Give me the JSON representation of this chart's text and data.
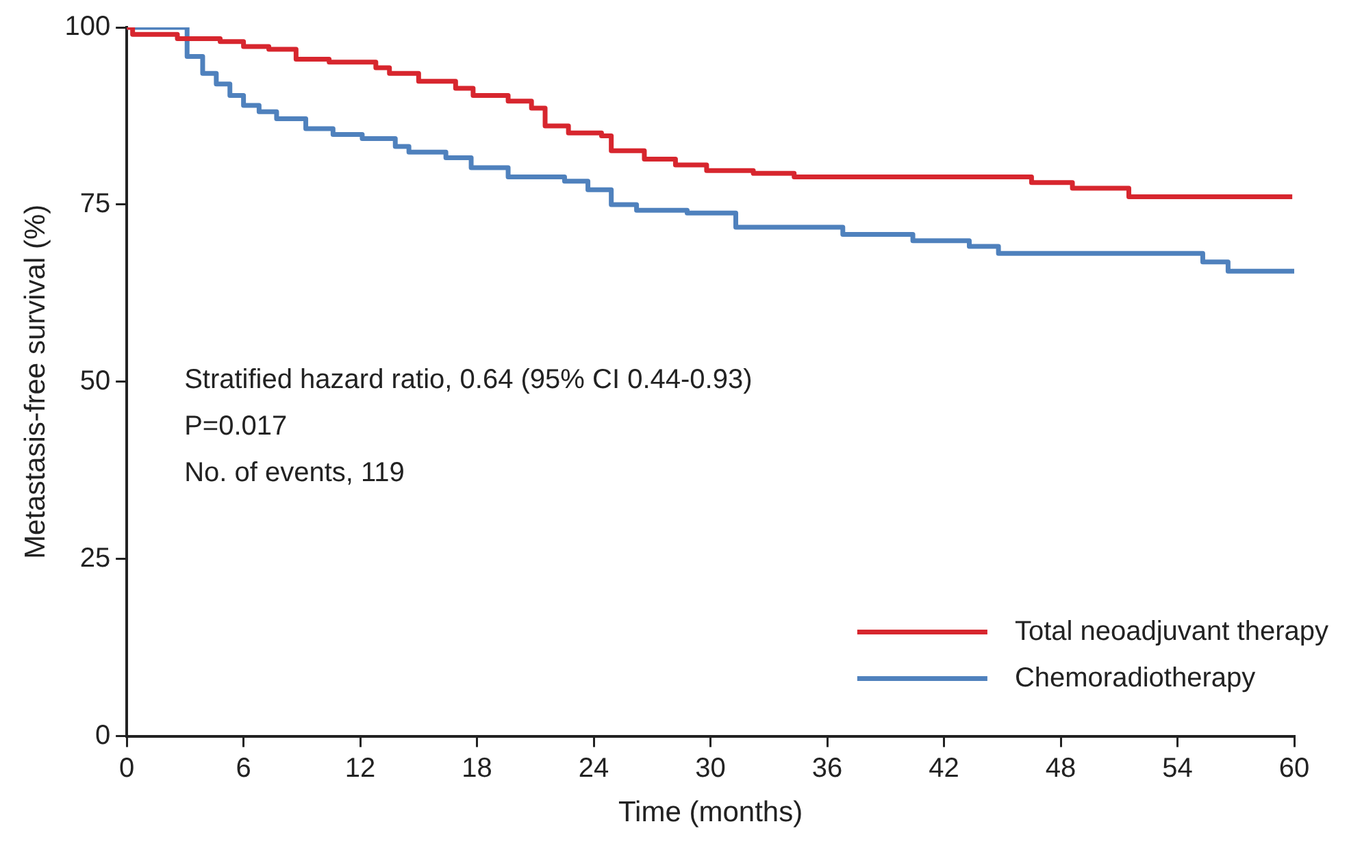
{
  "chart_data": {
    "type": "step",
    "xlabel": "Time (months)",
    "ylabel": "Metastasis-free survival (%)",
    "xlim": [
      0,
      60
    ],
    "xticks": [
      0,
      6,
      12,
      18,
      24,
      30,
      36,
      42,
      48,
      54,
      60
    ],
    "ylim": [
      0,
      100
    ],
    "yticks": [
      0,
      25,
      50,
      75,
      100
    ],
    "grid": false,
    "legend": "bottom right",
    "marker": "none",
    "line_style": "solid",
    "annotations": [
      "Stratified hazard ratio, 0.64 (95% CI 0.44-0.93)",
      "P=0.017",
      "No. of events, 119"
    ],
    "series": [
      {
        "name": "Total neoadjuvant therapy",
        "color": "#d7262e",
        "x": [
          0,
          0.3,
          2.6,
          4.8,
          6,
          7.3,
          8.7,
          10.4,
          12.8,
          13.5,
          15,
          16.9,
          17.8,
          19.6,
          20.8,
          21.5,
          22.7,
          24.4,
          24.9,
          26.6,
          28.2,
          29.8,
          32.2,
          34.3,
          46.5,
          48.6,
          51.5,
          59.9
        ],
        "values": [
          100,
          99,
          98.4,
          98,
          97.3,
          96.9,
          95.5,
          95.1,
          94.3,
          93.5,
          92.4,
          91.4,
          90.4,
          89.6,
          88.6,
          86.1,
          85.1,
          84.7,
          82.6,
          81.4,
          80.6,
          79.8,
          79.4,
          78.9,
          78.1,
          77.3,
          76.1,
          76.1
        ]
      },
      {
        "name": "Chemoradiotherapy",
        "color": "#4f81bd",
        "x": [
          0,
          2.5,
          3.1,
          3.9,
          4.6,
          5.3,
          6,
          6.8,
          7.7,
          9.2,
          10.6,
          12.1,
          13.8,
          14.5,
          16.4,
          17.7,
          19.6,
          22.5,
          23.7,
          24.9,
          26.2,
          28.8,
          31.3,
          36.8,
          40.4,
          43.3,
          44.8,
          55.3,
          56.6,
          60
        ],
        "values": [
          100,
          100,
          95.9,
          93.5,
          92,
          90.4,
          89,
          88.1,
          87.1,
          85.7,
          84.9,
          84.3,
          83.2,
          82.4,
          81.6,
          80.2,
          78.9,
          78.3,
          77.1,
          75,
          74.2,
          73.8,
          71.8,
          70.8,
          69.9,
          69.1,
          68.1,
          66.9,
          65.6,
          65.6
        ]
      }
    ]
  }
}
